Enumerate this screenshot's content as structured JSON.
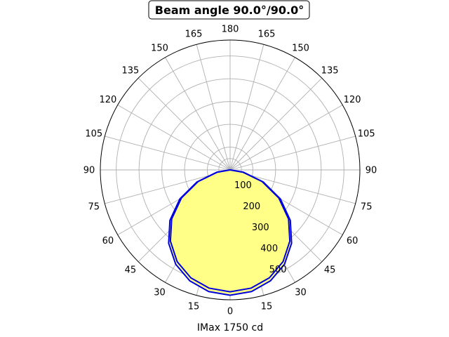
{
  "chart_data": {
    "type": "polar",
    "title": "Beam angle 90.0°/90.0°",
    "xlabel": "IMax 1750 cd",
    "theta_tick_labels": [
      "0",
      "15",
      "30",
      "45",
      "60",
      "75",
      "90",
      "105",
      "120",
      "135",
      "150",
      "165",
      "180",
      "165",
      "150",
      "135",
      "120",
      "105",
      "90",
      "75",
      "60",
      "45",
      "30",
      "15"
    ],
    "r_tick_labels": [
      "100",
      "200",
      "300",
      "400",
      "500"
    ],
    "r_ticks": [
      100,
      200,
      300,
      400,
      500
    ],
    "rlim": [
      0,
      570
    ],
    "zero_direction": "bottom",
    "grid": true,
    "series": [
      {
        "color": "#0000dd",
        "fill": "#ffff88",
        "points": [
          {
            "angle": 0,
            "r": 550
          },
          {
            "angle": 10,
            "r": 542
          },
          {
            "angle": 20,
            "r": 518
          },
          {
            "angle": 30,
            "r": 478
          },
          {
            "angle": 40,
            "r": 420
          },
          {
            "angle": 50,
            "r": 345
          },
          {
            "angle": 60,
            "r": 255
          },
          {
            "angle": 70,
            "r": 155
          },
          {
            "angle": 80,
            "r": 60
          },
          {
            "angle": 90,
            "r": 0
          }
        ]
      },
      {
        "color": "#0000dd",
        "fill": "#ffff88",
        "points": [
          {
            "angle": 0,
            "r": 535
          },
          {
            "angle": 10,
            "r": 527
          },
          {
            "angle": 20,
            "r": 504
          },
          {
            "angle": 30,
            "r": 465
          },
          {
            "angle": 40,
            "r": 408
          },
          {
            "angle": 50,
            "r": 335
          },
          {
            "angle": 60,
            "r": 247
          },
          {
            "angle": 70,
            "r": 150
          },
          {
            "angle": 80,
            "r": 57
          },
          {
            "angle": 90,
            "r": 0
          }
        ]
      }
    ]
  }
}
